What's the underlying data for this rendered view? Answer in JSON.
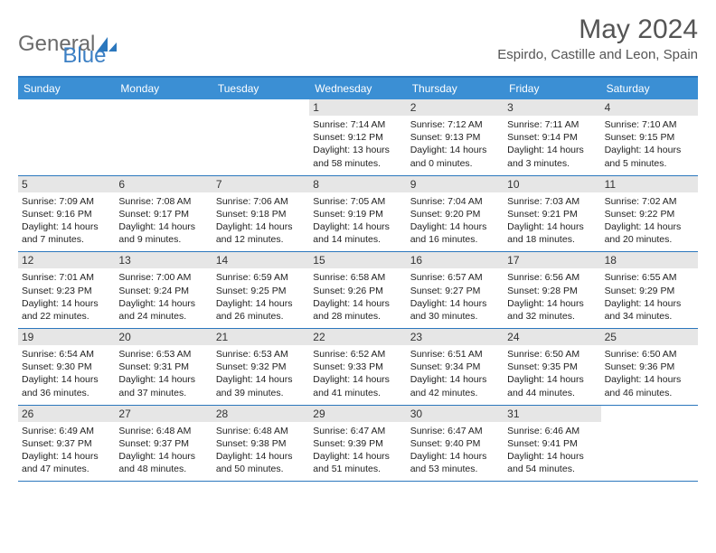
{
  "header": {
    "logo_part1": "General",
    "logo_part2": "Blue",
    "month_title": "May 2024",
    "location": "Espirdo, Castille and Leon, Spain"
  },
  "colors": {
    "header_bg": "#3b8fd4",
    "header_border": "#2b77bd",
    "daynum_bg": "#e6e6e6",
    "logo_gray": "#6b6b6b",
    "logo_blue": "#3b7fc4",
    "text": "#222222"
  },
  "days_of_week": [
    "Sunday",
    "Monday",
    "Tuesday",
    "Wednesday",
    "Thursday",
    "Friday",
    "Saturday"
  ],
  "calendar": {
    "leading_blanks": 3,
    "days": [
      {
        "n": 1,
        "sunrise": "7:14 AM",
        "sunset": "9:12 PM",
        "daylight": "13 hours and 58 minutes."
      },
      {
        "n": 2,
        "sunrise": "7:12 AM",
        "sunset": "9:13 PM",
        "daylight": "14 hours and 0 minutes."
      },
      {
        "n": 3,
        "sunrise": "7:11 AM",
        "sunset": "9:14 PM",
        "daylight": "14 hours and 3 minutes."
      },
      {
        "n": 4,
        "sunrise": "7:10 AM",
        "sunset": "9:15 PM",
        "daylight": "14 hours and 5 minutes."
      },
      {
        "n": 5,
        "sunrise": "7:09 AM",
        "sunset": "9:16 PM",
        "daylight": "14 hours and 7 minutes."
      },
      {
        "n": 6,
        "sunrise": "7:08 AM",
        "sunset": "9:17 PM",
        "daylight": "14 hours and 9 minutes."
      },
      {
        "n": 7,
        "sunrise": "7:06 AM",
        "sunset": "9:18 PM",
        "daylight": "14 hours and 12 minutes."
      },
      {
        "n": 8,
        "sunrise": "7:05 AM",
        "sunset": "9:19 PM",
        "daylight": "14 hours and 14 minutes."
      },
      {
        "n": 9,
        "sunrise": "7:04 AM",
        "sunset": "9:20 PM",
        "daylight": "14 hours and 16 minutes."
      },
      {
        "n": 10,
        "sunrise": "7:03 AM",
        "sunset": "9:21 PM",
        "daylight": "14 hours and 18 minutes."
      },
      {
        "n": 11,
        "sunrise": "7:02 AM",
        "sunset": "9:22 PM",
        "daylight": "14 hours and 20 minutes."
      },
      {
        "n": 12,
        "sunrise": "7:01 AM",
        "sunset": "9:23 PM",
        "daylight": "14 hours and 22 minutes."
      },
      {
        "n": 13,
        "sunrise": "7:00 AM",
        "sunset": "9:24 PM",
        "daylight": "14 hours and 24 minutes."
      },
      {
        "n": 14,
        "sunrise": "6:59 AM",
        "sunset": "9:25 PM",
        "daylight": "14 hours and 26 minutes."
      },
      {
        "n": 15,
        "sunrise": "6:58 AM",
        "sunset": "9:26 PM",
        "daylight": "14 hours and 28 minutes."
      },
      {
        "n": 16,
        "sunrise": "6:57 AM",
        "sunset": "9:27 PM",
        "daylight": "14 hours and 30 minutes."
      },
      {
        "n": 17,
        "sunrise": "6:56 AM",
        "sunset": "9:28 PM",
        "daylight": "14 hours and 32 minutes."
      },
      {
        "n": 18,
        "sunrise": "6:55 AM",
        "sunset": "9:29 PM",
        "daylight": "14 hours and 34 minutes."
      },
      {
        "n": 19,
        "sunrise": "6:54 AM",
        "sunset": "9:30 PM",
        "daylight": "14 hours and 36 minutes."
      },
      {
        "n": 20,
        "sunrise": "6:53 AM",
        "sunset": "9:31 PM",
        "daylight": "14 hours and 37 minutes."
      },
      {
        "n": 21,
        "sunrise": "6:53 AM",
        "sunset": "9:32 PM",
        "daylight": "14 hours and 39 minutes."
      },
      {
        "n": 22,
        "sunrise": "6:52 AM",
        "sunset": "9:33 PM",
        "daylight": "14 hours and 41 minutes."
      },
      {
        "n": 23,
        "sunrise": "6:51 AM",
        "sunset": "9:34 PM",
        "daylight": "14 hours and 42 minutes."
      },
      {
        "n": 24,
        "sunrise": "6:50 AM",
        "sunset": "9:35 PM",
        "daylight": "14 hours and 44 minutes."
      },
      {
        "n": 25,
        "sunrise": "6:50 AM",
        "sunset": "9:36 PM",
        "daylight": "14 hours and 46 minutes."
      },
      {
        "n": 26,
        "sunrise": "6:49 AM",
        "sunset": "9:37 PM",
        "daylight": "14 hours and 47 minutes."
      },
      {
        "n": 27,
        "sunrise": "6:48 AM",
        "sunset": "9:37 PM",
        "daylight": "14 hours and 48 minutes."
      },
      {
        "n": 28,
        "sunrise": "6:48 AM",
        "sunset": "9:38 PM",
        "daylight": "14 hours and 50 minutes."
      },
      {
        "n": 29,
        "sunrise": "6:47 AM",
        "sunset": "9:39 PM",
        "daylight": "14 hours and 51 minutes."
      },
      {
        "n": 30,
        "sunrise": "6:47 AM",
        "sunset": "9:40 PM",
        "daylight": "14 hours and 53 minutes."
      },
      {
        "n": 31,
        "sunrise": "6:46 AM",
        "sunset": "9:41 PM",
        "daylight": "14 hours and 54 minutes."
      }
    ]
  },
  "labels": {
    "sunrise_prefix": "Sunrise: ",
    "sunset_prefix": "Sunset: ",
    "daylight_prefix": "Daylight: "
  }
}
